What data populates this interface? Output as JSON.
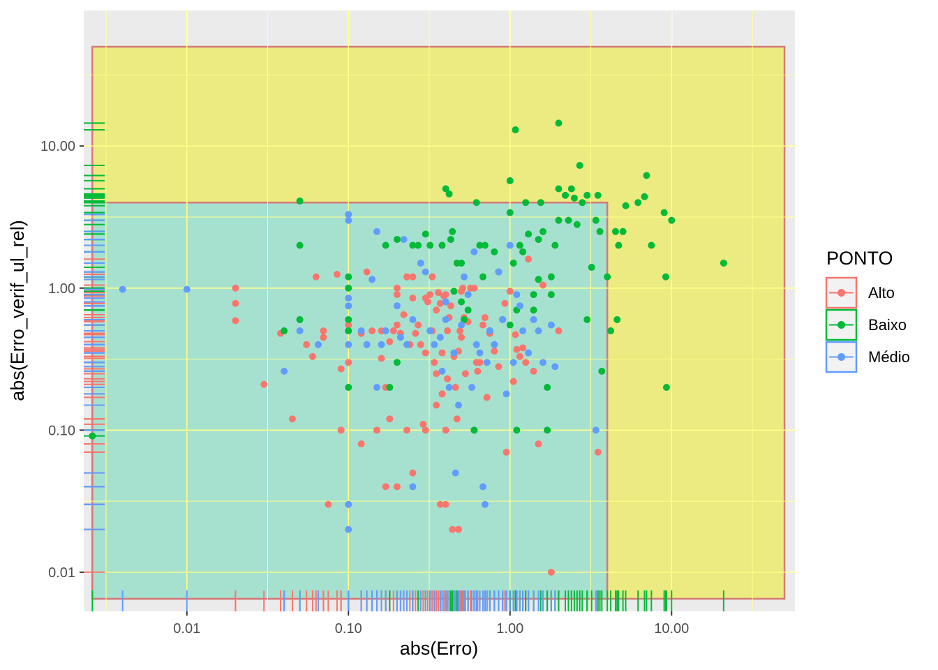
{
  "chart_data": {
    "type": "scatter",
    "xlabel": "abs(Erro)",
    "ylabel": "abs(Erro_verif_ul_rel)",
    "x_scale": "log10",
    "y_scale": "log10",
    "xlim": [
      0.0023,
      58
    ],
    "ylim": [
      0.0053,
      90
    ],
    "grid": true,
    "x_ticks": [
      0.01,
      0.1,
      1,
      10
    ],
    "x_tick_labels": [
      "0.01",
      "0.10",
      "1.00",
      "10.00"
    ],
    "y_ticks": [
      0.01,
      0.1,
      1,
      10
    ],
    "y_tick_labels": [
      "0.01",
      "0.10",
      "1.00",
      "10.00"
    ],
    "regions": [
      {
        "x": [
          0.0026,
          50
        ],
        "y": [
          0.0065,
          50
        ],
        "fill": "#ebeb81",
        "stroke": "#d57878"
      },
      {
        "x": [
          0.0026,
          4.0
        ],
        "y": [
          0.0065,
          4.0
        ],
        "fill": "#a6e1d0",
        "stroke": "#d57878"
      }
    ],
    "legend": {
      "title": "PONTO",
      "position": "right"
    },
    "series": [
      {
        "name": "Alto",
        "color": "#F8766D",
        "points": [
          [
            0.02,
            1.0
          ],
          [
            0.02,
            0.78
          ],
          [
            0.02,
            0.59
          ],
          [
            0.03,
            0.21
          ],
          [
            0.038,
            0.48
          ],
          [
            0.045,
            0.12
          ],
          [
            0.055,
            0.4
          ],
          [
            0.06,
            0.33
          ],
          [
            0.063,
            1.2
          ],
          [
            0.07,
            0.45
          ],
          [
            0.07,
            0.5
          ],
          [
            0.075,
            0.03
          ],
          [
            0.085,
            1.25
          ],
          [
            0.09,
            0.1
          ],
          [
            0.09,
            0.27
          ],
          [
            0.1,
            0.4
          ],
          [
            0.1,
            0.55
          ],
          [
            0.1,
            0.3
          ],
          [
            0.12,
            0.08
          ],
          [
            0.12,
            0.48
          ],
          [
            0.13,
            1.3
          ],
          [
            0.14,
            0.5
          ],
          [
            0.15,
            0.1
          ],
          [
            0.16,
            0.5
          ],
          [
            0.16,
            0.32
          ],
          [
            0.17,
            0.2
          ],
          [
            0.17,
            0.04
          ],
          [
            0.18,
            0.12
          ],
          [
            0.18,
            0.42
          ],
          [
            0.19,
            0.5
          ],
          [
            0.2,
            1.0
          ],
          [
            0.2,
            0.9
          ],
          [
            0.2,
            0.04
          ],
          [
            0.2,
            0.55
          ],
          [
            0.21,
            0.48
          ],
          [
            0.22,
            0.65
          ],
          [
            0.23,
            1.2
          ],
          [
            0.23,
            0.1
          ],
          [
            0.24,
            0.4
          ],
          [
            0.25,
            0.05
          ],
          [
            0.25,
            0.85
          ],
          [
            0.25,
            1.2
          ],
          [
            0.26,
            0.48
          ],
          [
            0.27,
            0.55
          ],
          [
            0.28,
            0.4
          ],
          [
            0.29,
            0.11
          ],
          [
            0.3,
            0.35
          ],
          [
            0.3,
            0.85
          ],
          [
            0.3,
            0.1
          ],
          [
            0.31,
            0.8
          ],
          [
            0.32,
            0.9
          ],
          [
            0.33,
            1.2
          ],
          [
            0.33,
            0.5
          ],
          [
            0.34,
            0.3
          ],
          [
            0.35,
            0.7
          ],
          [
            0.35,
            0.25
          ],
          [
            0.35,
            0.15
          ],
          [
            0.36,
            0.93
          ],
          [
            0.37,
            0.78
          ],
          [
            0.37,
            0.03
          ],
          [
            0.38,
            0.18
          ],
          [
            0.38,
            0.35
          ],
          [
            0.39,
            0.88
          ],
          [
            0.4,
            0.9
          ],
          [
            0.4,
            0.1
          ],
          [
            0.4,
            0.03
          ],
          [
            0.41,
            0.5
          ],
          [
            0.41,
            0.23
          ],
          [
            0.42,
            0.62
          ],
          [
            0.43,
            0.75
          ],
          [
            0.44,
            0.02
          ],
          [
            0.45,
            0.33
          ],
          [
            0.46,
            0.2
          ],
          [
            0.47,
            0.12
          ],
          [
            0.48,
            0.36
          ],
          [
            0.48,
            0.02
          ],
          [
            0.49,
            0.5
          ],
          [
            0.5,
            0.45
          ],
          [
            0.5,
            0.95
          ],
          [
            0.51,
            1.0
          ],
          [
            0.52,
            0.62
          ],
          [
            0.53,
            0.25
          ],
          [
            0.55,
            0.58
          ],
          [
            0.57,
            1.0
          ],
          [
            0.6,
            1.0
          ],
          [
            0.6,
            0.1
          ],
          [
            0.62,
            0.3
          ],
          [
            0.63,
            0.26
          ],
          [
            0.65,
            0.3
          ],
          [
            0.68,
            0.55
          ],
          [
            0.7,
            0.62
          ],
          [
            0.72,
            0.17
          ],
          [
            0.75,
            0.48
          ],
          [
            0.8,
            0.36
          ],
          [
            0.85,
            0.28
          ],
          [
            0.9,
            0.6
          ],
          [
            0.93,
            0.78
          ],
          [
            0.95,
            0.07
          ],
          [
            1.0,
            0.95
          ],
          [
            1.05,
            0.22
          ],
          [
            1.08,
            0.47
          ],
          [
            1.1,
            0.37
          ],
          [
            1.15,
            0.33
          ],
          [
            1.2,
            0.38
          ],
          [
            1.25,
            0.3
          ],
          [
            1.3,
            1.6
          ],
          [
            1.4,
            0.26
          ],
          [
            1.5,
            0.08
          ],
          [
            1.6,
            1.05
          ],
          [
            1.8,
            0.01
          ],
          [
            2.0,
            0.5
          ],
          [
            3.5,
            0.07
          ]
        ]
      },
      {
        "name": "Baixo",
        "color": "#00BA38",
        "points": [
          [
            0.0026,
            0.091
          ],
          [
            0.04,
            0.5
          ],
          [
            0.05,
            4.1
          ],
          [
            0.05,
            2.0
          ],
          [
            0.05,
            0.6
          ],
          [
            0.1,
            1.0
          ],
          [
            0.1,
            0.5
          ],
          [
            0.1,
            0.6
          ],
          [
            0.1,
            0.2
          ],
          [
            0.1,
            1.2
          ],
          [
            0.17,
            2.0
          ],
          [
            0.18,
            0.2
          ],
          [
            0.2,
            2.2
          ],
          [
            0.2,
            0.3
          ],
          [
            0.25,
            2.0
          ],
          [
            0.27,
            2.0
          ],
          [
            0.3,
            2.4
          ],
          [
            0.32,
            2.0
          ],
          [
            0.38,
            2.0
          ],
          [
            0.4,
            5.0
          ],
          [
            0.42,
            4.6
          ],
          [
            0.43,
            2.2
          ],
          [
            0.44,
            2.5
          ],
          [
            0.45,
            0.95
          ],
          [
            0.47,
            1.5
          ],
          [
            0.5,
            1.5
          ],
          [
            0.5,
            0.8
          ],
          [
            0.52,
            0.6
          ],
          [
            0.55,
            0.7
          ],
          [
            0.6,
            0.1
          ],
          [
            0.62,
            4.0
          ],
          [
            0.65,
            2.0
          ],
          [
            0.68,
            1.2
          ],
          [
            0.7,
            2.0
          ],
          [
            0.75,
            0.5
          ],
          [
            0.8,
            1.8
          ],
          [
            0.85,
            1.3
          ],
          [
            0.9,
            0.6
          ],
          [
            1.0,
            3.4
          ],
          [
            1.0,
            0.55
          ],
          [
            1.0,
            5.7
          ],
          [
            1.05,
            1.5
          ],
          [
            1.08,
            13.0
          ],
          [
            1.1,
            0.7
          ],
          [
            1.1,
            0.1
          ],
          [
            1.15,
            2.0
          ],
          [
            1.2,
            1.8
          ],
          [
            1.25,
            4.0
          ],
          [
            1.3,
            2.4
          ],
          [
            1.4,
            0.9
          ],
          [
            1.4,
            0.7
          ],
          [
            1.5,
            2.2
          ],
          [
            1.5,
            1.15
          ],
          [
            1.55,
            4.0
          ],
          [
            1.6,
            2.5
          ],
          [
            1.7,
            0.2
          ],
          [
            1.7,
            0.1
          ],
          [
            1.8,
            1.2
          ],
          [
            1.8,
            0.9
          ],
          [
            1.9,
            2.0
          ],
          [
            2.0,
            14.5
          ],
          [
            2.0,
            5.0
          ],
          [
            2.0,
            3.0
          ],
          [
            2.2,
            4.5
          ],
          [
            2.3,
            3.0
          ],
          [
            2.4,
            5.0
          ],
          [
            2.5,
            4.3
          ],
          [
            2.6,
            2.8
          ],
          [
            2.7,
            7.3
          ],
          [
            2.8,
            4.0
          ],
          [
            3.0,
            0.6
          ],
          [
            3.0,
            4.5
          ],
          [
            3.2,
            1.4
          ],
          [
            3.4,
            3.0
          ],
          [
            3.5,
            4.5
          ],
          [
            3.6,
            2.5
          ],
          [
            3.7,
            0.26
          ],
          [
            4.0,
            1.2
          ],
          [
            4.2,
            0.5
          ],
          [
            4.5,
            2.5
          ],
          [
            4.6,
            0.6
          ],
          [
            4.7,
            2.0
          ],
          [
            5.0,
            2.5
          ],
          [
            5.2,
            3.8
          ],
          [
            6.2,
            4.0
          ],
          [
            6.8,
            4.4
          ],
          [
            7.0,
            6.2
          ],
          [
            7.5,
            2.0
          ],
          [
            9.0,
            3.4
          ],
          [
            9.2,
            1.2
          ],
          [
            9.3,
            0.2
          ],
          [
            10.0,
            3.0
          ],
          [
            21.0,
            1.5
          ]
        ]
      },
      {
        "name": "Médio",
        "color": "#619CFF",
        "points": [
          [
            0.004,
            0.98
          ],
          [
            0.01,
            0.98
          ],
          [
            0.04,
            0.26
          ],
          [
            0.05,
            0.5
          ],
          [
            0.065,
            0.4
          ],
          [
            0.1,
            0.85
          ],
          [
            0.1,
            0.75
          ],
          [
            0.1,
            3.3
          ],
          [
            0.1,
            3.0
          ],
          [
            0.1,
            0.4
          ],
          [
            0.1,
            0.03
          ],
          [
            0.1,
            0.02
          ],
          [
            0.12,
            0.5
          ],
          [
            0.13,
            0.4
          ],
          [
            0.14,
            1.15
          ],
          [
            0.15,
            2.5
          ],
          [
            0.15,
            0.2
          ],
          [
            0.16,
            0.4
          ],
          [
            0.17,
            0.5
          ],
          [
            0.2,
            0.75
          ],
          [
            0.21,
            0.45
          ],
          [
            0.22,
            2.2
          ],
          [
            0.23,
            0.4
          ],
          [
            0.25,
            0.04
          ],
          [
            0.25,
            0.6
          ],
          [
            0.28,
            1.5
          ],
          [
            0.3,
            1.3
          ],
          [
            0.32,
            0.5
          ],
          [
            0.34,
            0.4
          ],
          [
            0.37,
            0.45
          ],
          [
            0.38,
            0.26
          ],
          [
            0.4,
            0.8
          ],
          [
            0.4,
            0.6
          ],
          [
            0.42,
            0.2
          ],
          [
            0.45,
            0.35
          ],
          [
            0.46,
            0.05
          ],
          [
            0.48,
            0.15
          ],
          [
            0.5,
            0.55
          ],
          [
            0.52,
            1.2
          ],
          [
            0.55,
            0.9
          ],
          [
            0.58,
            0.2
          ],
          [
            0.6,
            1.8
          ],
          [
            0.62,
            0.4
          ],
          [
            0.65,
            0.35
          ],
          [
            0.68,
            0.04
          ],
          [
            0.7,
            0.03
          ],
          [
            0.72,
            0.3
          ],
          [
            0.75,
            0.5
          ],
          [
            0.8,
            0.4
          ],
          [
            0.85,
            1.3
          ],
          [
            0.9,
            0.6
          ],
          [
            0.95,
            0.18
          ],
          [
            1.0,
            2.0
          ],
          [
            1.05,
            0.3
          ],
          [
            1.1,
            0.9
          ],
          [
            1.15,
            0.75
          ],
          [
            1.2,
            0.5
          ],
          [
            1.3,
            0.35
          ],
          [
            1.4,
            0.6
          ],
          [
            1.5,
            0.5
          ],
          [
            1.6,
            0.3
          ],
          [
            1.8,
            0.55
          ],
          [
            1.9,
            0.28
          ],
          [
            3.4,
            0.1
          ]
        ]
      }
    ]
  }
}
